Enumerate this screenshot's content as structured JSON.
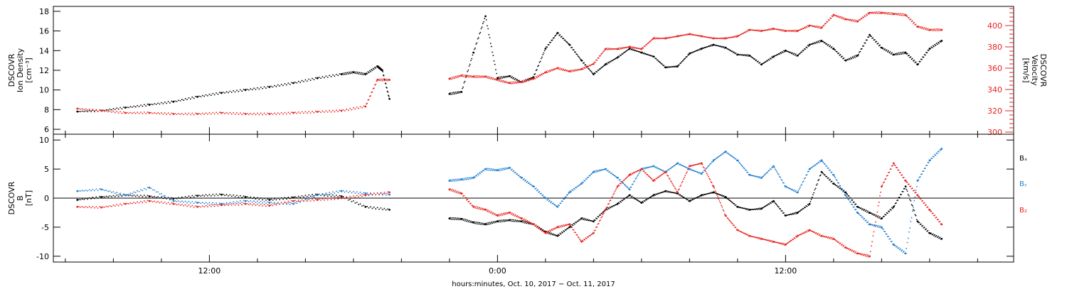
{
  "chart_data": [
    {
      "type": "scatter",
      "panel": "top",
      "ylabel_lines": [
        "DSCOVR",
        "Ion Density",
        "[cm⁻³]"
      ],
      "y2label_lines": [
        "DSCOVR",
        "Velocity",
        "[km/s]"
      ],
      "ylim": [
        5.5,
        18.5
      ],
      "yticks": [
        6,
        8,
        10,
        12,
        14,
        16,
        18
      ],
      "y2lim": [
        298,
        418
      ],
      "y2ticks": [
        300,
        320,
        340,
        360,
        380,
        400
      ],
      "series": [
        {
          "axis": "left",
          "color": "#000000",
          "x": [
            6.5,
            7.5,
            8.5,
            9.5,
            10.5,
            11.5,
            12.5,
            13.5,
            14.5,
            15.5,
            16.5,
            17.5,
            18.0,
            18.5,
            19.0,
            19.2,
            19.5,
            22.0,
            22.5,
            23.0,
            23.5,
            24.0,
            24.5,
            25.0,
            25.5,
            26.0,
            26.5,
            27.0,
            27.5,
            28.0,
            28.5,
            29.0,
            29.5,
            30.0,
            30.5,
            31.0,
            31.5,
            32.0,
            32.5,
            33.0,
            33.5,
            34.0,
            34.5,
            35.0,
            35.5,
            36.0,
            36.5,
            37.0,
            37.5,
            38.0,
            38.5,
            39.0,
            39.5,
            40.0,
            40.5,
            41.0,
            41.5,
            42.0,
            42.5
          ],
          "y": [
            7.8,
            7.9,
            8.2,
            8.5,
            8.8,
            9.3,
            9.7,
            10.0,
            10.3,
            10.7,
            11.2,
            11.6,
            11.8,
            11.6,
            12.4,
            12.0,
            9.1,
            9.6,
            9.8,
            13.8,
            17.5,
            11.2,
            11.4,
            10.8,
            11.3,
            14.2,
            15.8,
            14.6,
            13.0,
            11.6,
            12.6,
            13.3,
            14.2,
            13.8,
            13.4,
            12.3,
            12.4,
            13.7,
            14.2,
            14.6,
            14.3,
            13.6,
            13.5,
            12.6,
            13.4,
            14.0,
            13.5,
            14.6,
            15.0,
            14.2,
            13.0,
            13.5,
            15.6,
            14.3,
            13.6,
            13.8,
            12.6,
            14.2,
            15.0
          ]
        },
        {
          "axis": "right",
          "color": "#e8201c",
          "x": [
            6.5,
            7.5,
            8.5,
            9.5,
            10.5,
            11.5,
            12.5,
            13.5,
            14.5,
            15.5,
            16.5,
            17.5,
            18.5,
            19.0,
            19.5,
            22.0,
            22.5,
            23.0,
            23.5,
            24.0,
            24.5,
            25.0,
            25.5,
            26.0,
            26.5,
            27.0,
            27.5,
            28.0,
            28.5,
            29.0,
            29.5,
            30.0,
            30.5,
            31.0,
            31.5,
            32.0,
            32.5,
            33.0,
            33.5,
            34.0,
            34.5,
            35.0,
            35.5,
            36.0,
            36.5,
            37.0,
            37.5,
            38.0,
            38.5,
            39.0,
            39.5,
            40.0,
            40.5,
            41.0,
            41.5,
            42.0,
            42.5
          ],
          "y": [
            322,
            320,
            318,
            318,
            317,
            317,
            318,
            317,
            317,
            318,
            319,
            320,
            324,
            349,
            349,
            350,
            353,
            352,
            352,
            349,
            346,
            347,
            350,
            356,
            360,
            357,
            359,
            364,
            378,
            378,
            380,
            378,
            388,
            388,
            390,
            392,
            390,
            388,
            388,
            390,
            396,
            395,
            397,
            395,
            395,
            400,
            398,
            410,
            406,
            404,
            412,
            412,
            411,
            410,
            399,
            396,
            396
          ]
        }
      ]
    },
    {
      "type": "scatter",
      "panel": "bottom",
      "ylabel_lines": [
        "DSCOVR",
        "B",
        "[nT]"
      ],
      "ylim": [
        -11,
        11
      ],
      "yticks": [
        -10,
        -5,
        0,
        5,
        10
      ],
      "legend": [
        "Bₓ",
        "Bᵧ",
        "B₂"
      ],
      "series": [
        {
          "name": "Bx",
          "color": "#000000",
          "x": [
            6.5,
            7.5,
            8.5,
            9.5,
            10.5,
            11.5,
            12.5,
            13.5,
            14.5,
            15.5,
            16.5,
            17.5,
            18.5,
            19.5,
            22.0,
            22.5,
            23.0,
            23.5,
            24.0,
            24.5,
            25.0,
            25.5,
            26.0,
            26.5,
            27.0,
            27.5,
            28.0,
            28.5,
            29.0,
            29.5,
            30.0,
            30.5,
            31.0,
            31.5,
            32.0,
            32.5,
            33.0,
            33.5,
            34.0,
            34.5,
            35.0,
            35.5,
            36.0,
            36.5,
            37.0,
            37.5,
            38.0,
            38.5,
            39.0,
            39.5,
            40.0,
            40.5,
            41.0,
            41.5,
            42.0,
            42.5
          ],
          "y": [
            -0.3,
            0.2,
            0.5,
            0.3,
            -0.1,
            0.4,
            0.6,
            0.2,
            -0.3,
            0.1,
            0.6,
            0.3,
            -1.5,
            -2.0,
            -3.5,
            -3.6,
            -4.2,
            -4.5,
            -4.0,
            -3.8,
            -4.0,
            -4.5,
            -5.8,
            -6.5,
            -5.0,
            -3.5,
            -4.0,
            -2.0,
            -1.0,
            0.5,
            -0.8,
            0.5,
            1.2,
            0.8,
            -0.5,
            0.5,
            1.0,
            0.2,
            -1.5,
            -2.0,
            -1.8,
            -0.5,
            -3.0,
            -2.5,
            -1.0,
            4.5,
            2.5,
            1.0,
            -1.5,
            -2.5,
            -3.5,
            -1.5,
            2.0,
            -4.0,
            -6.0,
            -7.0
          ]
        },
        {
          "name": "By",
          "color": "#1f7fd0",
          "x": [
            6.5,
            7.5,
            8.5,
            9.5,
            10.5,
            11.5,
            12.5,
            13.5,
            14.5,
            15.5,
            16.5,
            17.5,
            18.5,
            19.5,
            22.0,
            22.5,
            23.0,
            23.5,
            24.0,
            24.5,
            25.0,
            25.5,
            26.0,
            26.5,
            27.0,
            27.5,
            28.0,
            28.5,
            29.0,
            29.5,
            30.0,
            30.5,
            31.0,
            31.5,
            32.0,
            32.5,
            33.0,
            33.5,
            34.0,
            34.5,
            35.0,
            35.5,
            36.0,
            36.5,
            37.0,
            37.5,
            38.0,
            38.5,
            39.0,
            39.5,
            40.0,
            40.5,
            41.0,
            41.5,
            42.0,
            42.5
          ],
          "y": [
            1.2,
            1.5,
            0.5,
            1.8,
            -0.5,
            -0.8,
            -1.0,
            -0.5,
            -0.8,
            -1.0,
            0.5,
            1.2,
            0.8,
            0.6,
            3.0,
            3.2,
            3.5,
            5.0,
            4.8,
            5.2,
            3.5,
            2.0,
            0.0,
            -1.5,
            1.0,
            2.5,
            4.5,
            5.0,
            3.5,
            1.5,
            5.0,
            5.5,
            4.5,
            6.0,
            5.0,
            4.2,
            6.5,
            8.0,
            6.5,
            4.0,
            3.5,
            5.5,
            2.0,
            1.0,
            5.0,
            6.5,
            4.0,
            0.5,
            -2.5,
            -4.5,
            -5.0,
            -8.0,
            -9.5,
            3.0,
            6.5,
            8.5
          ]
        },
        {
          "name": "Bz",
          "color": "#e8201c",
          "x": [
            6.5,
            7.5,
            8.5,
            9.5,
            10.5,
            11.5,
            12.5,
            13.5,
            14.5,
            15.5,
            16.5,
            17.5,
            18.5,
            19.5,
            22.0,
            22.5,
            23.0,
            23.5,
            24.0,
            24.5,
            25.0,
            25.5,
            26.0,
            26.5,
            27.0,
            27.5,
            28.0,
            28.5,
            29.0,
            29.5,
            30.0,
            30.5,
            31.0,
            31.5,
            32.0,
            32.5,
            33.0,
            33.5,
            34.0,
            34.5,
            35.0,
            35.5,
            36.0,
            36.5,
            37.0,
            37.5,
            38.0,
            38.5,
            39.0,
            39.5,
            40.0,
            40.5,
            41.0,
            41.5,
            42.0,
            42.5
          ],
          "y": [
            -1.5,
            -1.6,
            -1.0,
            -0.5,
            -1.0,
            -1.5,
            -1.2,
            -1.0,
            -1.3,
            -0.5,
            -0.3,
            0.0,
            0.5,
            1.0,
            1.5,
            0.8,
            -1.5,
            -2.0,
            -3.0,
            -2.5,
            -3.5,
            -4.5,
            -6.0,
            -5.0,
            -4.5,
            -7.5,
            -6.0,
            -2.0,
            2.0,
            4.0,
            5.0,
            3.0,
            4.5,
            1.0,
            5.5,
            6.0,
            2.0,
            -3.0,
            -5.5,
            -6.5,
            -7.0,
            -7.5,
            -8.0,
            -6.5,
            -5.5,
            -6.5,
            -7.0,
            -8.5,
            -9.5,
            -10.0,
            2.0,
            6.0,
            3.0,
            0.5,
            -2.0,
            -4.5
          ]
        }
      ]
    }
  ],
  "xaxis": {
    "xlim": [
      5.5,
      45.5
    ],
    "major_ticks": [
      12,
      24,
      36
    ],
    "major_labels": [
      "12:00",
      "0:00",
      "12:00"
    ],
    "minor_step": 2,
    "title": "hours:minutes, Oct. 10, 2017 − Oct. 11, 2017"
  }
}
